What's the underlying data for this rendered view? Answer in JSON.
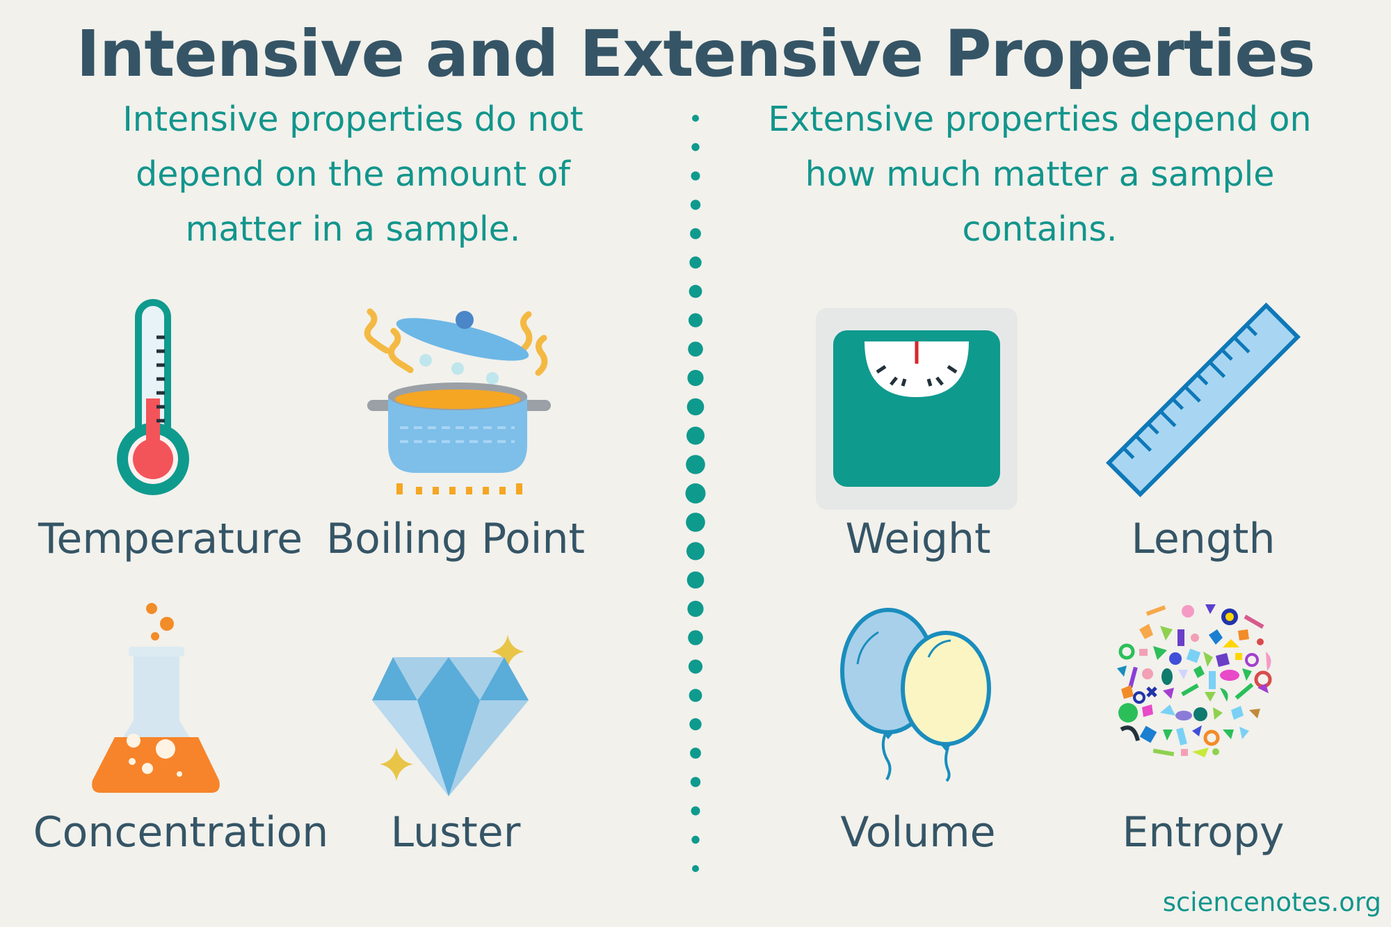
{
  "title": "Intensive and Extensive Properties",
  "intensive": {
    "description": "Intensive properties do not depend on the amount of matter in a sample.",
    "items": [
      {
        "label": "Temperature",
        "icon": "thermometer-icon"
      },
      {
        "label": "Boiling Point",
        "icon": "boiling-pot-icon"
      },
      {
        "label": "Concentration",
        "icon": "flask-icon"
      },
      {
        "label": "Luster",
        "icon": "diamond-icon"
      }
    ]
  },
  "extensive": {
    "description": "Extensive properties depend on how much matter a sample contains.",
    "items": [
      {
        "label": "Weight",
        "icon": "scale-icon"
      },
      {
        "label": "Length",
        "icon": "ruler-icon"
      },
      {
        "label": "Volume",
        "icon": "balloons-icon"
      },
      {
        "label": "Entropy",
        "icon": "scattered-shapes-icon"
      }
    ]
  },
  "credit": "sciencenotes.org",
  "colors": {
    "background": "#f2f1ec",
    "title": "#355566",
    "accent_teal": "#12958c",
    "label": "#355566"
  }
}
